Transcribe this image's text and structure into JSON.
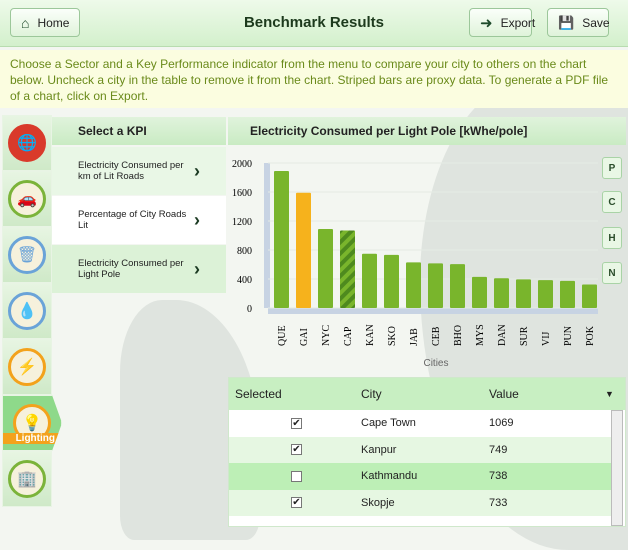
{
  "header": {
    "home": "Home",
    "title": "Benchmark Results",
    "export": "Export",
    "save": "Save"
  },
  "instructions": "Choose a Sector and a Key Performance indicator from the menu to compare your city to others on the chart below. Uncheck a city in the table to remove it from the chart. Striped bars are proxy data.  To generate a PDF file of a chart, click on Export.",
  "sectors": [
    {
      "name": "global",
      "color": "#d93a2b"
    },
    {
      "name": "transport",
      "color": "#7bb33a"
    },
    {
      "name": "waste",
      "color": "#6aa3d8"
    },
    {
      "name": "water",
      "color": "#6aa3d8"
    },
    {
      "name": "energy",
      "color": "#f3a21c"
    },
    {
      "name": "lighting",
      "color": "#f3a21c",
      "label": "Lighting"
    },
    {
      "name": "buildings",
      "color": "#7bb33a"
    }
  ],
  "kpi": {
    "heading": "Select a KPI",
    "items": [
      "Electricity Consumed per km of Lit Roads",
      "Percentage of City Roads Lit",
      "Electricity Consumed per Light Pole"
    ]
  },
  "chart_title": "Electricity Consumed per Light Pole [kWhe/pole]",
  "side_buttons": [
    "P",
    "C",
    "H",
    "N"
  ],
  "chart_data": {
    "type": "bar",
    "title": "Electricity Consumed per Light Pole [kWhe/pole]",
    "xlabel": "Cities",
    "ylabel": "",
    "ylim": [
      0,
      2000
    ],
    "yticks": [
      0,
      400,
      800,
      1200,
      1600,
      2000
    ],
    "categories": [
      "QUE",
      "GAI",
      "NYC",
      "CAP",
      "KAN",
      "SKO",
      "JAB",
      "CEB",
      "BHO",
      "MYS",
      "DAN",
      "SUR",
      "VIJ",
      "PUN",
      "POK"
    ],
    "values": [
      1890,
      1590,
      1090,
      1069,
      749,
      733,
      630,
      615,
      605,
      430,
      410,
      395,
      385,
      375,
      325
    ],
    "highlight": "GAI",
    "proxy": [
      "CAP"
    ],
    "colors": {
      "bar": "#79b52c",
      "highlight": "#f6b21c",
      "proxy_stripe": "#4e8a1e"
    }
  },
  "table": {
    "headers": [
      "Selected",
      "City",
      "Value"
    ],
    "rows": [
      {
        "city": "Cape Town",
        "value": "1069",
        "checked": true
      },
      {
        "city": "Kanpur",
        "value": "749",
        "checked": true
      },
      {
        "city": "Kathmandu",
        "value": "738",
        "checked": false
      },
      {
        "city": "Skopje",
        "value": "733",
        "checked": true
      }
    ]
  }
}
